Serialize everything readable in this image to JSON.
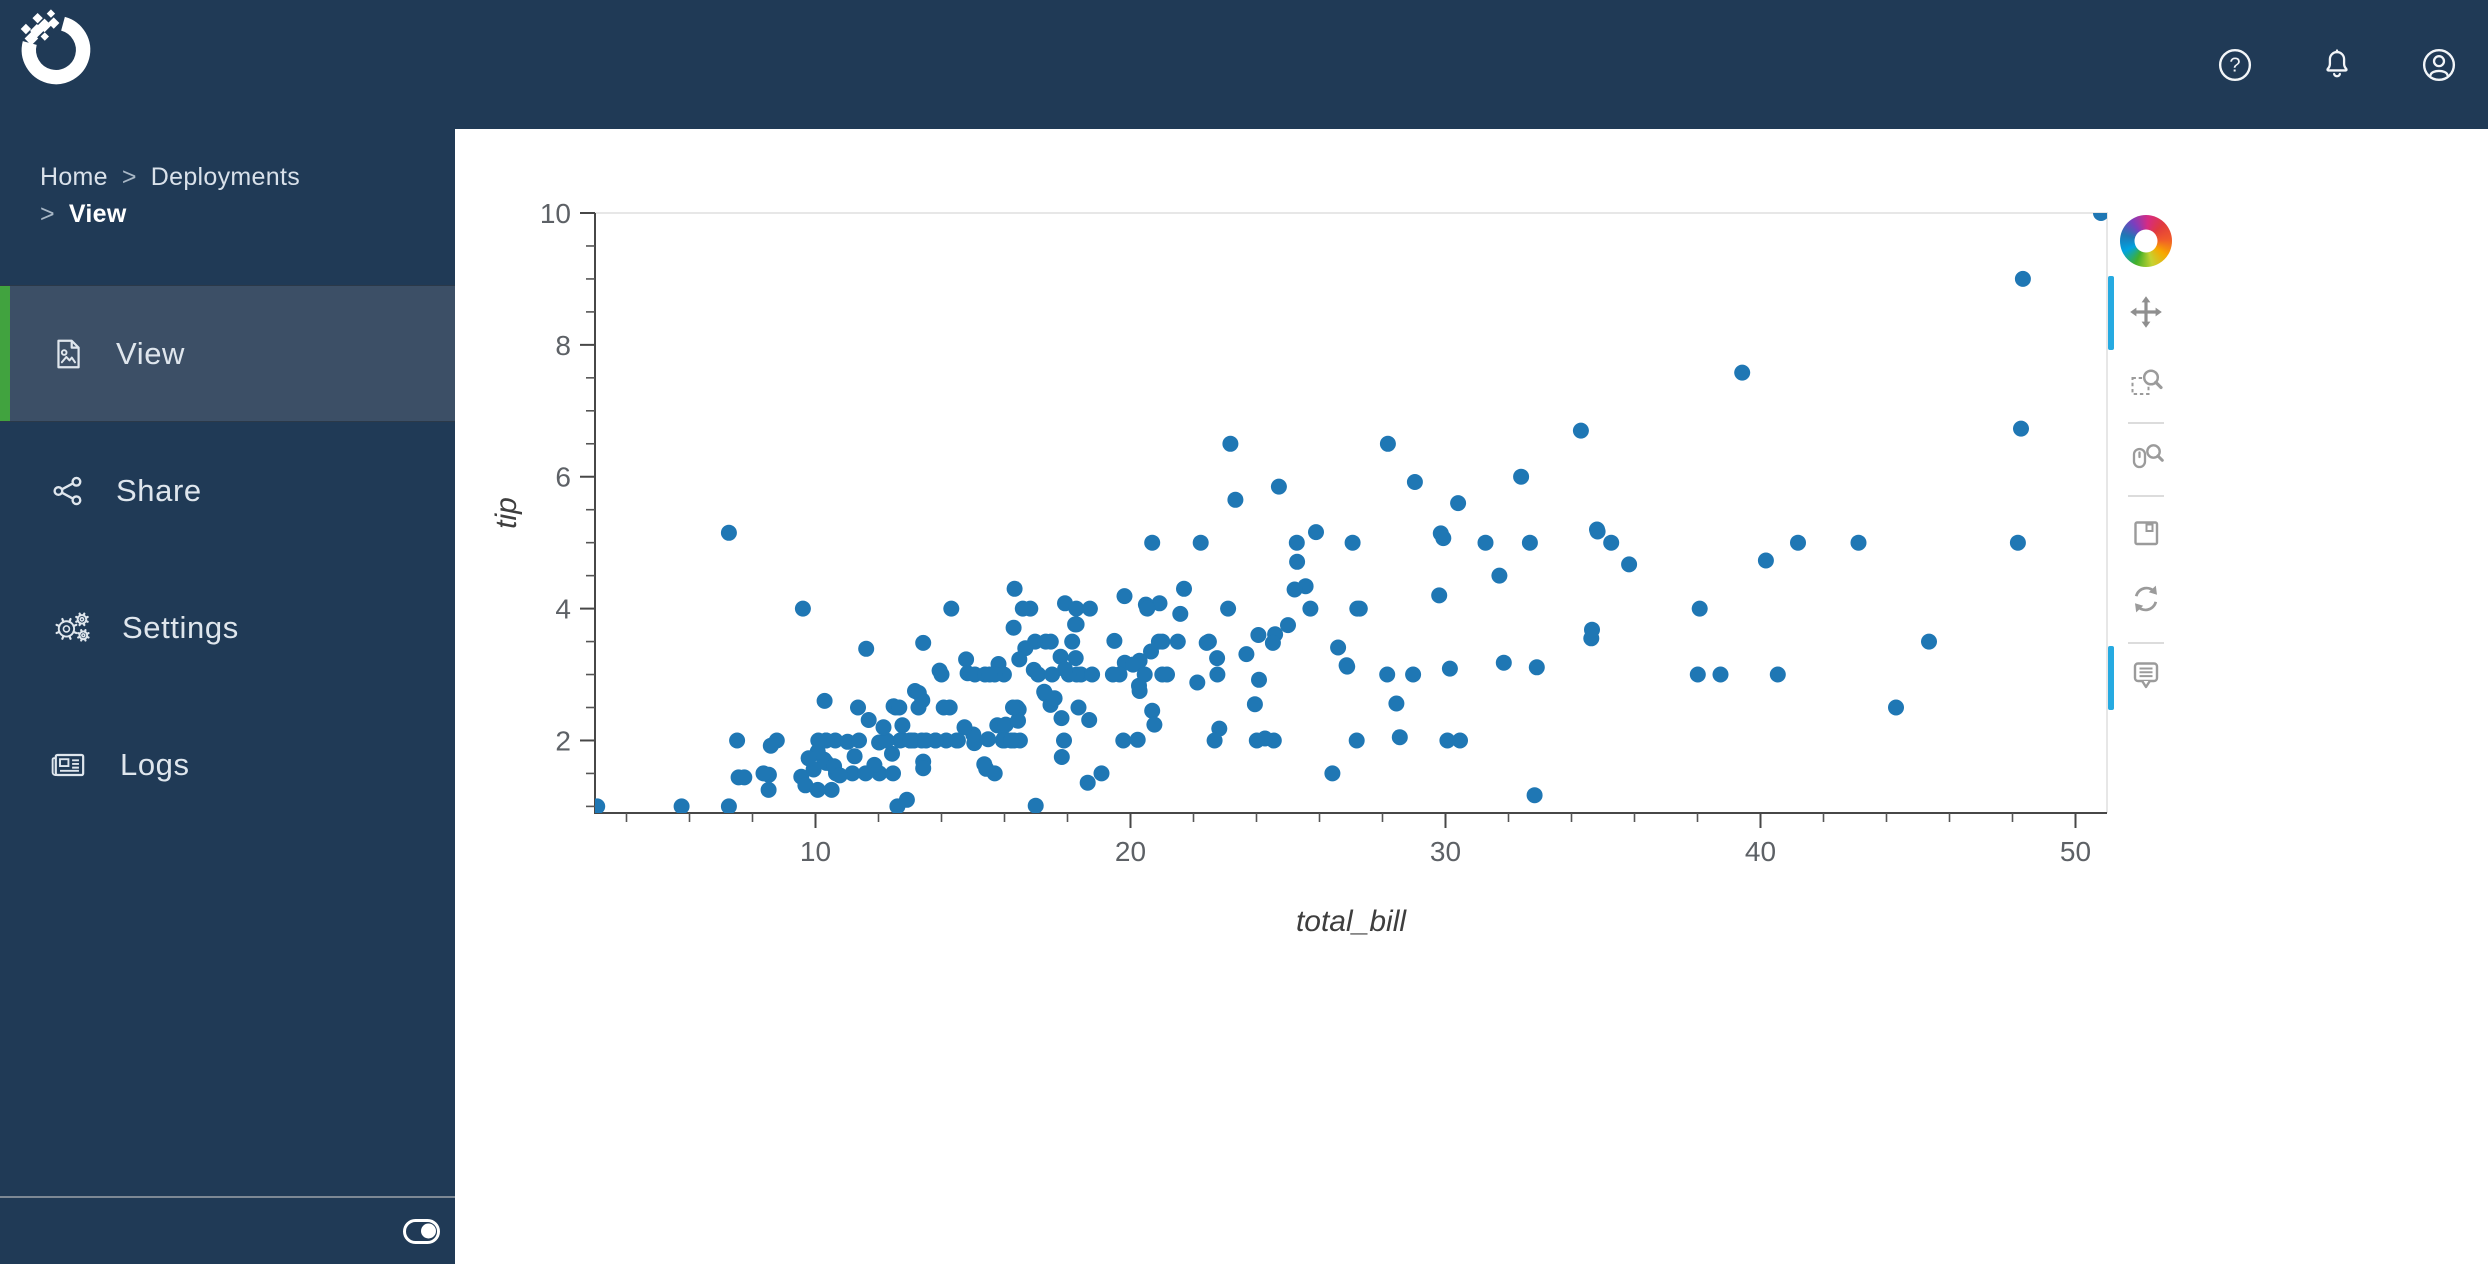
{
  "topbar": {
    "logo": "anaconda-logo",
    "icons": [
      {
        "name": "help",
        "glyph": "?"
      },
      {
        "name": "notifications",
        "glyph": "bell"
      },
      {
        "name": "account",
        "glyph": "person"
      }
    ]
  },
  "sidebar": {
    "breadcrumb": {
      "separator": ">",
      "items": [
        "Home",
        "Deployments",
        "View"
      ]
    },
    "items": [
      {
        "label": "View",
        "icon": "image-document-icon",
        "selected": true
      },
      {
        "label": "Share",
        "icon": "share-icon",
        "selected": false
      },
      {
        "label": "Settings",
        "icon": "gears-icon",
        "selected": false
      },
      {
        "label": "Logs",
        "icon": "newspaper-icon",
        "selected": false
      }
    ],
    "footer_toggle": {
      "state": "on"
    }
  },
  "colors": {
    "navy": "#203a56",
    "selected_row": "#3c4f66",
    "accent_green": "#41a33f",
    "tool_active_blue": "#26aae1",
    "marker_blue": "#1f77b4"
  },
  "bokeh_toolbar": {
    "logo": "bokeh-logo",
    "tools": [
      {
        "name": "pan",
        "active": true
      },
      {
        "name": "box-zoom",
        "active": false
      },
      {
        "name": "wheel-zoom",
        "active": false
      },
      {
        "name": "save",
        "active": false
      },
      {
        "name": "reset",
        "active": false
      },
      {
        "name": "hover",
        "active": true
      }
    ]
  },
  "chart_data": {
    "type": "scatter",
    "title": "",
    "xlabel": "total_bill",
    "ylabel": "tip",
    "xlim": [
      3.0,
      51.0
    ],
    "ylim": [
      0.9,
      10.0
    ],
    "x_ticks": [
      10,
      20,
      30,
      40,
      50
    ],
    "y_ticks": [
      2,
      4,
      6,
      8,
      10
    ],
    "x_minor_step": 2,
    "y_minor_step": 0.5,
    "grid": false,
    "marker_color": "#1f77b4",
    "marker_radius": 8,
    "points": [
      [
        16.99,
        1.01
      ],
      [
        10.34,
        1.66
      ],
      [
        21.01,
        3.5
      ],
      [
        23.68,
        3.31
      ],
      [
        24.59,
        3.61
      ],
      [
        25.29,
        4.71
      ],
      [
        8.77,
        2.0
      ],
      [
        26.88,
        3.12
      ],
      [
        15.04,
        1.96
      ],
      [
        14.78,
        3.23
      ],
      [
        10.27,
        1.71
      ],
      [
        35.26,
        5.0
      ],
      [
        15.42,
        1.57
      ],
      [
        18.43,
        3.0
      ],
      [
        14.83,
        3.02
      ],
      [
        21.58,
        3.92
      ],
      [
        10.33,
        1.67
      ],
      [
        16.29,
        3.71
      ],
      [
        16.97,
        3.5
      ],
      [
        20.65,
        3.35
      ],
      [
        17.92,
        4.08
      ],
      [
        20.29,
        2.75
      ],
      [
        15.77,
        2.23
      ],
      [
        39.42,
        7.58
      ],
      [
        19.82,
        3.18
      ],
      [
        17.81,
        2.34
      ],
      [
        13.37,
        2.0
      ],
      [
        12.69,
        2.0
      ],
      [
        21.7,
        4.3
      ],
      [
        19.65,
        3.0
      ],
      [
        9.55,
        1.45
      ],
      [
        18.35,
        2.5
      ],
      [
        15.06,
        3.0
      ],
      [
        20.69,
        2.45
      ],
      [
        17.78,
        3.27
      ],
      [
        24.06,
        3.6
      ],
      [
        16.31,
        2.0
      ],
      [
        16.93,
        3.07
      ],
      [
        18.69,
        2.31
      ],
      [
        31.27,
        5.0
      ],
      [
        16.04,
        2.24
      ],
      [
        17.46,
        2.54
      ],
      [
        13.94,
        3.06
      ],
      [
        9.68,
        1.32
      ],
      [
        30.4,
        5.6
      ],
      [
        18.29,
        3.0
      ],
      [
        22.23,
        5.0
      ],
      [
        32.4,
        6.0
      ],
      [
        28.55,
        2.05
      ],
      [
        18.04,
        3.0
      ],
      [
        12.54,
        2.5
      ],
      [
        10.29,
        2.6
      ],
      [
        34.81,
        5.2
      ],
      [
        9.94,
        1.56
      ],
      [
        25.56,
        4.34
      ],
      [
        19.49,
        3.51
      ],
      [
        38.01,
        3.0
      ],
      [
        26.41,
        1.5
      ],
      [
        11.24,
        1.76
      ],
      [
        48.27,
        6.73
      ],
      [
        20.29,
        3.21
      ],
      [
        13.81,
        2.0
      ],
      [
        11.02,
        1.98
      ],
      [
        18.29,
        3.76
      ],
      [
        17.59,
        2.64
      ],
      [
        20.08,
        3.15
      ],
      [
        16.45,
        2.47
      ],
      [
        3.07,
        1.0
      ],
      [
        20.23,
        2.01
      ],
      [
        15.01,
        2.09
      ],
      [
        12.02,
        1.97
      ],
      [
        17.07,
        3.0
      ],
      [
        26.86,
        3.14
      ],
      [
        25.28,
        5.0
      ],
      [
        14.73,
        2.2
      ],
      [
        10.51,
        1.25
      ],
      [
        17.92,
        3.08
      ],
      [
        27.2,
        4.0
      ],
      [
        22.76,
        3.0
      ],
      [
        17.29,
        2.71
      ],
      [
        19.44,
        3.0
      ],
      [
        16.66,
        3.4
      ],
      [
        10.07,
        1.83
      ],
      [
        32.68,
        5.0
      ],
      [
        15.98,
        2.03
      ],
      [
        34.83,
        5.17
      ],
      [
        13.03,
        2.0
      ],
      [
        18.28,
        4.0
      ],
      [
        24.71,
        5.85
      ],
      [
        21.16,
        3.0
      ],
      [
        28.97,
        3.0
      ],
      [
        22.49,
        3.5
      ],
      [
        5.75,
        1.0
      ],
      [
        16.32,
        4.3
      ],
      [
        22.75,
        3.25
      ],
      [
        40.17,
        4.73
      ],
      [
        27.28,
        4.0
      ],
      [
        12.03,
        1.5
      ],
      [
        21.01,
        3.0
      ],
      [
        12.46,
        1.5
      ],
      [
        11.35,
        2.5
      ],
      [
        15.38,
        3.0
      ],
      [
        44.3,
        2.5
      ],
      [
        22.42,
        3.48
      ],
      [
        20.92,
        4.08
      ],
      [
        15.36,
        1.64
      ],
      [
        20.49,
        4.06
      ],
      [
        25.21,
        4.29
      ],
      [
        18.24,
        3.76
      ],
      [
        14.31,
        4.0
      ],
      [
        14.0,
        3.0
      ],
      [
        7.25,
        1.0
      ],
      [
        38.07,
        4.0
      ],
      [
        23.95,
        2.55
      ],
      [
        25.71,
        4.0
      ],
      [
        17.31,
        3.5
      ],
      [
        29.93,
        5.07
      ],
      [
        10.65,
        1.5
      ],
      [
        12.43,
        1.8
      ],
      [
        24.08,
        2.92
      ],
      [
        11.69,
        2.31
      ],
      [
        13.42,
        1.68
      ],
      [
        14.26,
        2.5
      ],
      [
        15.95,
        2.0
      ],
      [
        12.48,
        2.52
      ],
      [
        29.8,
        4.2
      ],
      [
        8.52,
        1.48
      ],
      [
        14.52,
        2.0
      ],
      [
        11.38,
        2.0
      ],
      [
        22.82,
        2.18
      ],
      [
        19.08,
        1.5
      ],
      [
        20.27,
        2.83
      ],
      [
        11.17,
        1.5
      ],
      [
        12.26,
        2.0
      ],
      [
        18.26,
        3.25
      ],
      [
        8.51,
        1.25
      ],
      [
        10.33,
        2.0
      ],
      [
        14.15,
        2.0
      ],
      [
        16.0,
        2.0
      ],
      [
        13.16,
        2.75
      ],
      [
        17.47,
        3.5
      ],
      [
        34.3,
        6.7
      ],
      [
        41.19,
        5.0
      ],
      [
        27.05,
        5.0
      ],
      [
        16.43,
        2.3
      ],
      [
        8.35,
        1.5
      ],
      [
        18.64,
        1.36
      ],
      [
        11.87,
        1.63
      ],
      [
        9.78,
        1.73
      ],
      [
        7.51,
        2.0
      ],
      [
        14.07,
        2.5
      ],
      [
        13.13,
        2.0
      ],
      [
        17.26,
        2.74
      ],
      [
        24.55,
        2.0
      ],
      [
        19.77,
        2.0
      ],
      [
        29.85,
        5.14
      ],
      [
        48.17,
        5.0
      ],
      [
        25.0,
        3.75
      ],
      [
        13.39,
        2.61
      ],
      [
        16.49,
        2.0
      ],
      [
        21.5,
        3.5
      ],
      [
        12.66,
        2.5
      ],
      [
        16.21,
        2.0
      ],
      [
        13.81,
        2.0
      ],
      [
        17.51,
        3.0
      ],
      [
        24.52,
        3.48
      ],
      [
        20.76,
        2.24
      ],
      [
        31.71,
        4.5
      ],
      [
        10.59,
        1.61
      ],
      [
        10.63,
        2.0
      ],
      [
        50.81,
        10.0
      ],
      [
        15.81,
        3.16
      ],
      [
        7.25,
        5.15
      ],
      [
        31.85,
        3.18
      ],
      [
        16.82,
        4.0
      ],
      [
        32.9,
        3.11
      ],
      [
        17.89,
        2.0
      ],
      [
        14.48,
        2.0
      ],
      [
        9.6,
        4.0
      ],
      [
        34.63,
        3.55
      ],
      [
        34.65,
        3.68
      ],
      [
        23.33,
        5.65
      ],
      [
        45.35,
        3.5
      ],
      [
        23.17,
        6.5
      ],
      [
        40.55,
        3.0
      ],
      [
        20.69,
        5.0
      ],
      [
        20.9,
        3.5
      ],
      [
        30.46,
        2.0
      ],
      [
        18.15,
        3.5
      ],
      [
        23.1,
        4.0
      ],
      [
        15.69,
        1.5
      ],
      [
        19.81,
        4.19
      ],
      [
        28.44,
        2.56
      ],
      [
        15.48,
        2.02
      ],
      [
        16.58,
        4.0
      ],
      [
        7.56,
        1.44
      ],
      [
        10.34,
        2.0
      ],
      [
        43.11,
        5.0
      ],
      [
        13.0,
        2.0
      ],
      [
        13.51,
        2.0
      ],
      [
        18.71,
        4.0
      ],
      [
        12.74,
        2.01
      ],
      [
        13.0,
        2.0
      ],
      [
        16.4,
        2.5
      ],
      [
        20.53,
        4.0
      ],
      [
        16.47,
        3.23
      ],
      [
        26.59,
        3.41
      ],
      [
        38.73,
        3.0
      ],
      [
        24.27,
        2.03
      ],
      [
        12.76,
        2.23
      ],
      [
        30.06,
        2.0
      ],
      [
        25.89,
        5.16
      ],
      [
        48.33,
        9.0
      ],
      [
        13.27,
        2.5
      ],
      [
        28.17,
        6.5
      ],
      [
        12.9,
        1.1
      ],
      [
        28.15,
        3.0
      ],
      [
        11.59,
        1.5
      ],
      [
        7.74,
        1.44
      ],
      [
        30.14,
        3.09
      ],
      [
        12.16,
        2.2
      ],
      [
        13.42,
        3.48
      ],
      [
        8.58,
        1.92
      ],
      [
        15.98,
        3.0
      ],
      [
        13.42,
        1.58
      ],
      [
        16.27,
        2.5
      ],
      [
        10.09,
        2.0
      ],
      [
        20.45,
        3.0
      ],
      [
        13.28,
        2.72
      ],
      [
        22.12,
        2.88
      ],
      [
        24.01,
        2.0
      ],
      [
        15.69,
        3.0
      ],
      [
        11.61,
        3.39
      ],
      [
        10.77,
        1.47
      ],
      [
        15.53,
        3.0
      ],
      [
        10.07,
        1.25
      ],
      [
        12.6,
        1.0
      ],
      [
        32.83,
        1.17
      ],
      [
        35.83,
        4.67
      ],
      [
        29.03,
        5.92
      ],
      [
        27.18,
        2.0
      ],
      [
        22.67,
        2.0
      ],
      [
        17.82,
        1.75
      ],
      [
        18.78,
        3.0
      ]
    ]
  }
}
